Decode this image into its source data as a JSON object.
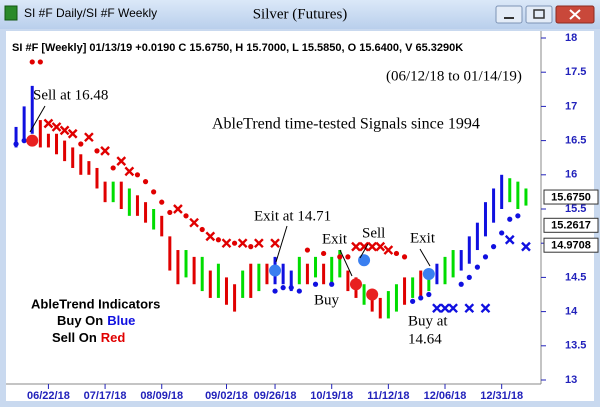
{
  "chart_data": {
    "type": "ohlc",
    "window_title": "SI #F Daily/SI #F Weekly",
    "title": "Silver (Futures)",
    "info": "SI #F [Weekly] 01/13/19 +0.0190 C 15.6750, H 15.7000, L 15.5850, O 15.6400, V 65.3290K",
    "date_range": "(06/12/18 to 01/14/19)",
    "subtitle": "AbleTrend time-tested Signals since 1994",
    "legend_box": {
      "title": "AbleTrend Indicators",
      "buy_prefix": "Buy On",
      "buy_word": "Blue",
      "sell_prefix": "Sell On",
      "sell_word": "Red"
    },
    "categories": [
      null,
      null,
      null,
      null,
      "06/22/18",
      null,
      null,
      null,
      null,
      null,
      null,
      "07/17/18",
      null,
      null,
      null,
      null,
      null,
      null,
      "08/09/18",
      null,
      null,
      null,
      null,
      null,
      null,
      null,
      "09/02/18",
      null,
      null,
      null,
      null,
      null,
      "09/26/18",
      null,
      null,
      null,
      null,
      null,
      null,
      "10/19/18",
      null,
      null,
      null,
      null,
      null,
      null,
      "11/12/18",
      null,
      null,
      null,
      null,
      null,
      null,
      "12/06/18",
      null,
      null,
      null,
      null,
      null,
      null,
      "12/31/18",
      null,
      null,
      null
    ],
    "high": [
      16.7,
      17.0,
      17.3,
      16.8,
      16.6,
      16.6,
      16.5,
      16.4,
      16.3,
      16.2,
      16.1,
      15.9,
      15.9,
      15.9,
      15.8,
      15.7,
      15.6,
      15.5,
      15.4,
      15.1,
      14.9,
      14.9,
      14.8,
      14.8,
      14.6,
      14.7,
      14.5,
      14.4,
      14.6,
      14.7,
      14.7,
      14.7,
      14.8,
      14.7,
      14.6,
      14.8,
      14.7,
      14.8,
      14.7,
      14.8,
      14.9,
      14.6,
      14.5,
      14.4,
      14.3,
      14.2,
      14.3,
      14.4,
      14.5,
      14.5,
      14.6,
      14.6,
      14.7,
      14.8,
      14.9,
      14.9,
      15.1,
      15.3,
      15.6,
      15.8,
      16.0,
      15.95,
      15.9,
      15.8
    ],
    "low": [
      16.4,
      16.5,
      16.6,
      16.4,
      16.4,
      16.3,
      16.2,
      16.1,
      16.0,
      16.0,
      15.8,
      15.6,
      15.6,
      15.5,
      15.4,
      15.4,
      15.3,
      15.2,
      15.1,
      14.6,
      14.4,
      14.5,
      14.4,
      14.3,
      14.2,
      14.2,
      14.1,
      14.0,
      14.2,
      14.2,
      14.3,
      14.4,
      14.4,
      14.4,
      14.3,
      14.4,
      14.4,
      14.5,
      14.4,
      14.4,
      14.5,
      14.3,
      14.2,
      14.1,
      14.0,
      13.9,
      13.9,
      14.0,
      14.1,
      14.2,
      14.2,
      14.3,
      14.4,
      14.4,
      14.5,
      14.6,
      14.7,
      14.9,
      15.1,
      15.3,
      15.5,
      15.6,
      15.5,
      15.55
    ],
    "bar_colors": [
      "#1010e0",
      "#1010e0",
      "#1010e0",
      "#e00000",
      "#e00000",
      "#e00000",
      "#e00000",
      "#e00000",
      "#e00000",
      "#e00000",
      "#e00000",
      "#e00000",
      "#00dd00",
      "#e00000",
      "#00dd00",
      "#e00000",
      "#e00000",
      "#00dd00",
      "#e00000",
      "#e00000",
      "#e00000",
      "#00dd00",
      "#e00000",
      "#00dd00",
      "#e00000",
      "#00dd00",
      "#e00000",
      "#e00000",
      "#00dd00",
      "#e00000",
      "#00dd00",
      "#e00000",
      "#1010e0",
      "#1010e0",
      "#1010e0",
      "#00dd00",
      "#e00000",
      "#00dd00",
      "#e00000",
      "#00dd00",
      "#00dd00",
      "#e00000",
      "#e00000",
      "#00dd00",
      "#e00000",
      "#e00000",
      "#00dd00",
      "#00dd00",
      "#e00000",
      "#00dd00",
      "#e00000",
      "#00dd00",
      "#1010e0",
      "#00dd00",
      "#00dd00",
      "#1010e0",
      "#1010e0",
      "#1010e0",
      "#1010e0",
      "#1010e0",
      "#1010e0",
      "#00dd00",
      "#00dd00",
      "#00dd00"
    ],
    "overlays": [
      {
        "marker": "dot",
        "color": "#e00000",
        "values": [
          null,
          null,
          17.65,
          17.65,
          null,
          null,
          null,
          null,
          16.45,
          null,
          16.35,
          null,
          16.1,
          null,
          null,
          16.0,
          15.9,
          15.75,
          15.6,
          15.45,
          null,
          15.4,
          null,
          15.2,
          null,
          15.05,
          null,
          15.0,
          null,
          14.95,
          null,
          null,
          null,
          null,
          null,
          null,
          14.9,
          null,
          14.85,
          null,
          14.8,
          14.8,
          null,
          null,
          null,
          null,
          null,
          14.85,
          14.8,
          null,
          null,
          null,
          null,
          null,
          null,
          null,
          null,
          null,
          null,
          null,
          null,
          null,
          null,
          null
        ]
      },
      {
        "marker": "x",
        "color": "#e00000",
        "values": [
          null,
          null,
          null,
          null,
          16.75,
          16.7,
          16.65,
          16.6,
          null,
          16.55,
          null,
          16.35,
          null,
          16.2,
          16.05,
          null,
          null,
          null,
          null,
          null,
          15.5,
          null,
          15.3,
          null,
          15.1,
          null,
          15.0,
          null,
          15.0,
          null,
          15.0,
          null,
          15.0,
          null,
          null,
          null,
          null,
          null,
          null,
          null,
          null,
          null,
          14.95,
          14.95,
          14.95,
          14.95,
          14.9,
          null,
          null,
          null,
          null,
          null,
          null,
          null,
          null,
          null,
          null,
          null,
          null,
          null,
          null,
          null,
          null,
          null
        ]
      },
      {
        "marker": "dot",
        "color": "#1010e0",
        "values": [
          16.45,
          16.5,
          null,
          null,
          null,
          null,
          null,
          null,
          null,
          null,
          null,
          null,
          null,
          null,
          null,
          null,
          null,
          null,
          null,
          null,
          null,
          null,
          null,
          null,
          null,
          null,
          null,
          null,
          null,
          null,
          null,
          null,
          14.3,
          14.35,
          14.35,
          14.3,
          null,
          14.4,
          null,
          14.4,
          null,
          null,
          null,
          null,
          null,
          null,
          null,
          null,
          null,
          14.15,
          14.2,
          14.25,
          null,
          null,
          null,
          14.4,
          14.5,
          14.65,
          14.8,
          14.95,
          15.15,
          15.35,
          15.4,
          null
        ]
      },
      {
        "marker": "x",
        "color": "#1010e0",
        "values": [
          null,
          null,
          null,
          null,
          null,
          null,
          null,
          null,
          null,
          null,
          null,
          null,
          null,
          null,
          null,
          null,
          null,
          null,
          null,
          null,
          null,
          null,
          null,
          null,
          null,
          null,
          null,
          null,
          null,
          null,
          null,
          null,
          null,
          null,
          null,
          null,
          null,
          null,
          null,
          null,
          null,
          null,
          null,
          null,
          null,
          null,
          null,
          null,
          null,
          null,
          null,
          null,
          14.05,
          14.05,
          14.05,
          null,
          14.05,
          null,
          14.05,
          null,
          null,
          15.05,
          null,
          14.95
        ]
      }
    ],
    "signals": [
      {
        "color": "#e82020",
        "values": [
          null,
          null,
          16.5,
          null,
          null,
          null,
          null,
          null,
          null,
          null,
          null,
          null,
          null,
          null,
          null,
          null,
          null,
          null,
          null,
          null,
          null,
          null,
          null,
          null,
          null,
          null,
          null,
          null,
          null,
          null,
          null,
          null,
          null,
          null,
          null,
          null,
          null,
          null,
          null,
          null,
          null,
          null,
          14.4,
          null,
          14.25,
          null,
          null,
          null,
          null,
          null,
          null,
          null,
          null,
          null,
          null,
          null,
          null,
          null,
          null,
          null,
          null,
          null,
          null,
          null
        ]
      },
      {
        "color": "#3a7ff0",
        "values": [
          null,
          null,
          null,
          null,
          null,
          null,
          null,
          null,
          null,
          null,
          null,
          null,
          null,
          null,
          null,
          null,
          null,
          null,
          null,
          null,
          null,
          null,
          null,
          null,
          null,
          null,
          null,
          null,
          null,
          null,
          null,
          null,
          14.6,
          null,
          null,
          null,
          null,
          null,
          null,
          null,
          null,
          null,
          null,
          14.75,
          null,
          null,
          null,
          null,
          null,
          null,
          null,
          14.55,
          null,
          null,
          null,
          null,
          null,
          null,
          null,
          null,
          null,
          null,
          null,
          null
        ]
      }
    ],
    "annotations": [
      "Sell at 16.48",
      "Exit at 14.71",
      "Exit",
      "Sell",
      "Buy",
      "Exit",
      "Buy at",
      "14.64"
    ],
    "price_markers": [
      {
        "value": 15.675,
        "label": "15.6750"
      },
      {
        "value": 15.2617,
        "label": "15.2617"
      },
      {
        "value": 14.9708,
        "label": "14.9708"
      }
    ],
    "ylim": [
      13,
      18
    ],
    "yticks": [
      13,
      13.5,
      14,
      14.5,
      15,
      15.5,
      16,
      16.5,
      17,
      17.5,
      18
    ],
    "axis_color": "#2222bb"
  }
}
